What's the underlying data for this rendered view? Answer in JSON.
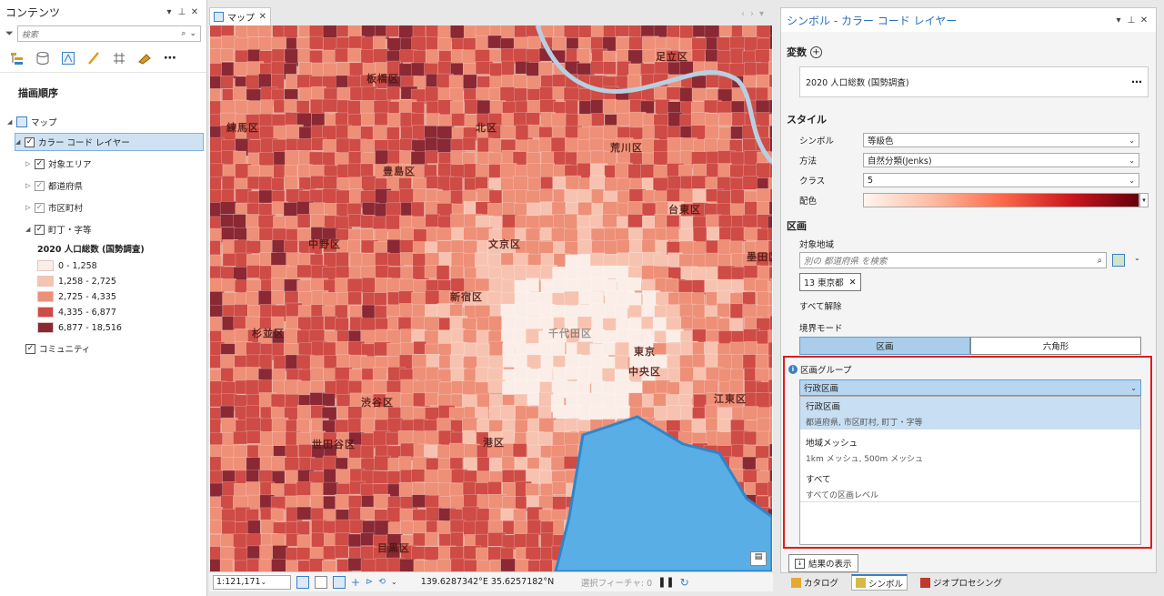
{
  "contents": {
    "title": "コンテンツ",
    "search_placeholder": "検索",
    "drawing_order": "描画順序",
    "map_name": "マップ",
    "layer_name": "カラー コード レイヤー",
    "sublayers": [
      "対象エリア",
      "都道府県",
      "市区町村",
      "町丁・字等"
    ],
    "legend_title": "2020 人口総数 (国勢調査)",
    "legend": [
      {
        "label": "0 - 1,258",
        "color": "#fbeee8"
      },
      {
        "label": "1,258 - 2,725",
        "color": "#f7c3b0"
      },
      {
        "label": "2,725 - 4,335",
        "color": "#ee8f78"
      },
      {
        "label": "4,335 - 6,877",
        "color": "#cf4b45"
      },
      {
        "label": "6,877 - 18,516",
        "color": "#8a2833"
      }
    ],
    "community_layer": "コミュニティ"
  },
  "map": {
    "tab_label": "マップ",
    "labels": [
      "足立区",
      "板橋区",
      "練馬区",
      "北区",
      "荒川区",
      "豊島区",
      "台東区",
      "文京区",
      "中野区",
      "新宿区",
      "千代田区",
      "杉並区",
      "東京",
      "中央区",
      "渋谷区",
      "江東区",
      "港区",
      "世田谷区",
      "目黒区",
      "墨田区"
    ],
    "scale": "1:121,171",
    "coordinates": "139.6287342°E 35.6257182°N",
    "selected_features": "選択フィーチャ: 0"
  },
  "symbology": {
    "title": "シンボル - カラー コード レイヤー",
    "variable_section": "変数",
    "variable_value": "2020 人口総数 (国勢調査)",
    "style_section": "スタイル",
    "symbol_label": "シンボル",
    "symbol_value": "等級色",
    "method_label": "方法",
    "method_value": "自然分類(Jenks)",
    "classes_label": "クラス",
    "classes_value": "5",
    "color_label": "配色",
    "boundaries_section": "区画",
    "target_area_label": "対象地域",
    "target_search_placeholder": "別の 都道府県 を検索",
    "selected_tag": "13 東京都",
    "clear_all": "すべて解除",
    "boundary_mode_label": "境界モード",
    "mode_options": [
      "区画",
      "六角形"
    ],
    "group_label": "区画グループ",
    "group_selected": "行政区画",
    "group_options": [
      {
        "name": "行政区画",
        "desc": "都道府県, 市区町村, 町丁・字等"
      },
      {
        "name": "地域メッシュ",
        "desc": "1km メッシュ, 500m メッシュ"
      },
      {
        "name": "すべて",
        "desc": "すべての区画レベル"
      }
    ],
    "show_results": "結果の表示"
  },
  "bottom_tabs": [
    "カタログ",
    "シンボル",
    "ジオプロセシング"
  ]
}
